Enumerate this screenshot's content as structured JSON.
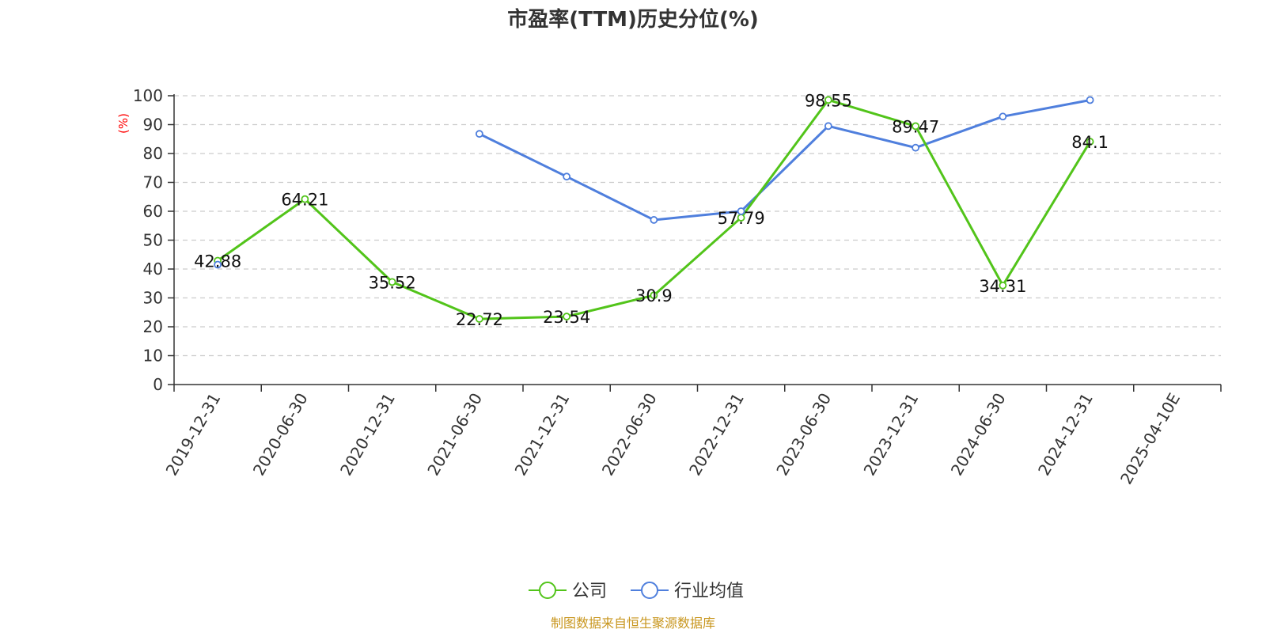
{
  "chart_data": {
    "type": "line",
    "title": "市盈率(TTM)历史分位(%)",
    "ylabel": "(%)",
    "xlabel": "",
    "ylim": [
      0,
      100
    ],
    "yticks": [
      0,
      10,
      20,
      30,
      40,
      50,
      60,
      70,
      80,
      90,
      100
    ],
    "grid": true,
    "legend_position": "bottom",
    "categories": [
      "2019-12-31",
      "2020-06-30",
      "2020-12-31",
      "2021-06-30",
      "2021-12-31",
      "2022-06-30",
      "2022-12-31",
      "2023-06-30",
      "2023-12-31",
      "2024-06-30",
      "2024-12-31",
      "2025-04-10E"
    ],
    "series": [
      {
        "name": "公司",
        "color": "#52c41a",
        "values": [
          42.88,
          64.21,
          35.52,
          22.72,
          23.54,
          30.9,
          57.79,
          98.55,
          89.47,
          34.31,
          84.1,
          null
        ],
        "labels": [
          "42.88",
          "64.21",
          "35.52",
          "22.72",
          "23.54",
          "30.9",
          "57.79",
          "98.55",
          "89.47",
          "34.31",
          "84.1",
          null
        ]
      },
      {
        "name": "行业均值",
        "color": "#4f7fdd",
        "values": [
          41.5,
          null,
          null,
          86.8,
          72,
          57,
          60,
          89.5,
          82,
          92.8,
          98.5,
          null
        ]
      }
    ],
    "source": "制图数据来自恒生聚源数据库",
    "source_color": "#c8961e"
  }
}
